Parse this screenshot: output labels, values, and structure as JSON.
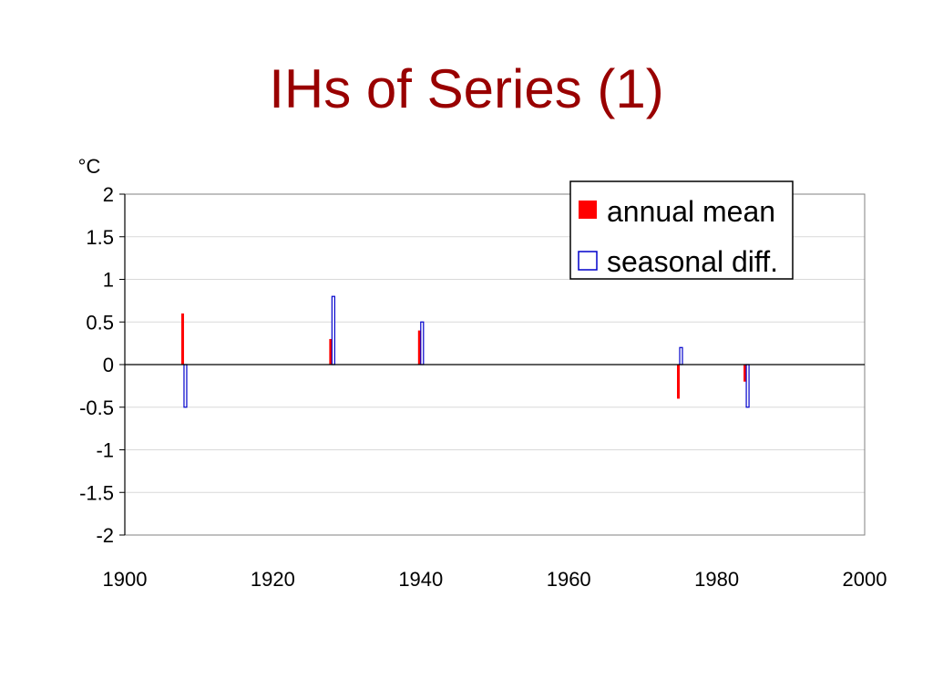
{
  "slide": {
    "title": "IHs of Series (1)",
    "title_color": "#990000"
  },
  "chart_data": {
    "type": "bar",
    "title": "IHs of Series (1)",
    "ylabel": "°C",
    "xlabel": "",
    "xlim": [
      1900,
      2000
    ],
    "ylim": [
      -2,
      2
    ],
    "x_ticks": [
      "1900",
      "1920",
      "1940",
      "1960",
      "1980",
      "2000"
    ],
    "y_ticks": [
      "2",
      "1.5",
      "1",
      "0.5",
      "0",
      "-0.5",
      "-1",
      "-1.5",
      "-2"
    ],
    "grid": true,
    "legend_position": "top-right",
    "series": [
      {
        "name": "annual mean",
        "color": "#ff0000",
        "style": "filled",
        "x": [
          1908,
          1928,
          1940,
          1975,
          1984
        ],
        "values": [
          0.6,
          0.3,
          0.4,
          -0.4,
          -0.2
        ]
      },
      {
        "name": "seasonal diff.",
        "color": "#0000cc",
        "style": "outline",
        "x": [
          1908,
          1928,
          1940,
          1975,
          1984
        ],
        "values": [
          -0.5,
          0.8,
          0.5,
          0.2,
          -0.5
        ]
      }
    ]
  }
}
